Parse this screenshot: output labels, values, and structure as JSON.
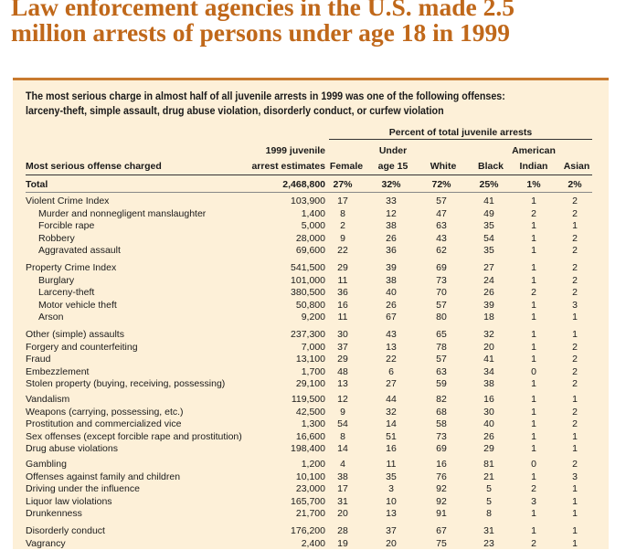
{
  "headline": [
    "Law enforcement agencies in the U.S. made 2.5",
    "million arrests of persons under age 18 in 1999"
  ],
  "intro": [
    "The most serious charge in almost half of all juvenile arrests in 1999 was one of the following offenses:",
    "larceny-theft, simple assault, drug abuse violation, disorderly conduct, or curfew violation"
  ],
  "table": {
    "group_header": "Percent of total juvenile arrests",
    "col_offense": "Most serious offense charged",
    "col_est_1": "1999 juvenile",
    "col_est_2": "arrest estimates",
    "col_female": "Female",
    "col_u15_1": "Under",
    "col_u15_2": "age 15",
    "col_white": "White",
    "col_black": "Black",
    "col_ai_1": "American",
    "col_ai_2": "Indian",
    "col_asian": "Asian",
    "rows": [
      {
        "label": "Total",
        "est": "2,468,800",
        "female": "27%",
        "u15": "32%",
        "white": "72%",
        "black": "25%",
        "ai": "1%",
        "asian": "2%",
        "indent": false,
        "bold": true
      },
      {
        "label": "Violent Crime Index",
        "est": "103,900",
        "female": "17",
        "u15": "33",
        "white": "57",
        "black": "41",
        "ai": "1",
        "asian": "2",
        "indent": false
      },
      {
        "label": "Murder and nonnegligent manslaughter",
        "est": "1,400",
        "female": "8",
        "u15": "12",
        "white": "47",
        "black": "49",
        "ai": "2",
        "asian": "2",
        "indent": true
      },
      {
        "label": "Forcible rape",
        "est": "5,000",
        "female": "2",
        "u15": "38",
        "white": "63",
        "black": "35",
        "ai": "1",
        "asian": "1",
        "indent": true
      },
      {
        "label": "Robbery",
        "est": "28,000",
        "female": "9",
        "u15": "26",
        "white": "43",
        "black": "54",
        "ai": "1",
        "asian": "2",
        "indent": true
      },
      {
        "label": "Aggravated assault",
        "est": "69,600",
        "female": "22",
        "u15": "36",
        "white": "62",
        "black": "35",
        "ai": "1",
        "asian": "2",
        "indent": true
      },
      {
        "label": "Property Crime Index",
        "est": "541,500",
        "female": "29",
        "u15": "39",
        "white": "69",
        "black": "27",
        "ai": "1",
        "asian": "2",
        "indent": false
      },
      {
        "label": "Burglary",
        "est": "101,000",
        "female": "11",
        "u15": "38",
        "white": "73",
        "black": "24",
        "ai": "1",
        "asian": "2",
        "indent": true
      },
      {
        "label": "Larceny-theft",
        "est": "380,500",
        "female": "36",
        "u15": "40",
        "white": "70",
        "black": "26",
        "ai": "2",
        "asian": "2",
        "indent": true
      },
      {
        "label": "Motor vehicle theft",
        "est": "50,800",
        "female": "16",
        "u15": "26",
        "white": "57",
        "black": "39",
        "ai": "1",
        "asian": "3",
        "indent": true
      },
      {
        "label": "Arson",
        "est": "9,200",
        "female": "11",
        "u15": "67",
        "white": "80",
        "black": "18",
        "ai": "1",
        "asian": "1",
        "indent": true
      },
      {
        "label": "Other (simple) assaults",
        "est": "237,300",
        "female": "30",
        "u15": "43",
        "white": "65",
        "black": "32",
        "ai": "1",
        "asian": "1",
        "indent": false
      },
      {
        "label": "Forgery and counterfeiting",
        "est": "7,000",
        "female": "37",
        "u15": "13",
        "white": "78",
        "black": "20",
        "ai": "1",
        "asian": "2",
        "indent": false
      },
      {
        "label": "Fraud",
        "est": "13,100",
        "female": "29",
        "u15": "22",
        "white": "57",
        "black": "41",
        "ai": "1",
        "asian": "2",
        "indent": false
      },
      {
        "label": "Embezzlement",
        "est": "1,700",
        "female": "48",
        "u15": "6",
        "white": "63",
        "black": "34",
        "ai": "0",
        "asian": "2",
        "indent": false
      },
      {
        "label": "Stolen property (buying, receiving, possessing)",
        "est": "29,100",
        "female": "13",
        "u15": "27",
        "white": "59",
        "black": "38",
        "ai": "1",
        "asian": "2",
        "indent": false
      },
      {
        "label": "Vandalism",
        "est": "119,500",
        "female": "12",
        "u15": "44",
        "white": "82",
        "black": "16",
        "ai": "1",
        "asian": "1",
        "indent": false
      },
      {
        "label": "Weapons (carrying, possessing, etc.)",
        "est": "42,500",
        "female": "9",
        "u15": "32",
        "white": "68",
        "black": "30",
        "ai": "1",
        "asian": "2",
        "indent": false
      },
      {
        "label": "Prostitution and commercialized vice",
        "est": "1,300",
        "female": "54",
        "u15": "14",
        "white": "58",
        "black": "40",
        "ai": "1",
        "asian": "2",
        "indent": false
      },
      {
        "label": "Sex offenses (except forcible rape and prostitution)",
        "est": "16,600",
        "female": "8",
        "u15": "51",
        "white": "73",
        "black": "26",
        "ai": "1",
        "asian": "1",
        "indent": false
      },
      {
        "label": "Drug abuse violations",
        "est": "198,400",
        "female": "14",
        "u15": "16",
        "white": "69",
        "black": "29",
        "ai": "1",
        "asian": "1",
        "indent": false
      },
      {
        "label": "Gambling",
        "est": "1,200",
        "female": "4",
        "u15": "11",
        "white": "16",
        "black": "81",
        "ai": "0",
        "asian": "2",
        "indent": false
      },
      {
        "label": "Offenses against family and children",
        "est": "10,100",
        "female": "38",
        "u15": "35",
        "white": "76",
        "black": "21",
        "ai": "1",
        "asian": "3",
        "indent": false
      },
      {
        "label": "Driving under the influence",
        "est": "23,000",
        "female": "17",
        "u15": "3",
        "white": "92",
        "black": "5",
        "ai": "2",
        "asian": "1",
        "indent": false
      },
      {
        "label": "Liquor law violations",
        "est": "165,700",
        "female": "31",
        "u15": "10",
        "white": "92",
        "black": "5",
        "ai": "3",
        "asian": "1",
        "indent": false
      },
      {
        "label": "Drunkenness",
        "est": "21,700",
        "female": "20",
        "u15": "13",
        "white": "91",
        "black": "8",
        "ai": "1",
        "asian": "1",
        "indent": false
      },
      {
        "label": "Disorderly conduct",
        "est": "176,200",
        "female": "28",
        "u15": "37",
        "white": "67",
        "black": "31",
        "ai": "1",
        "asian": "1",
        "indent": false
      },
      {
        "label": "Vagrancy",
        "est": "2,400",
        "female": "19",
        "u15": "20",
        "white": "75",
        "black": "23",
        "ai": "2",
        "asian": "1",
        "indent": false
      }
    ]
  }
}
